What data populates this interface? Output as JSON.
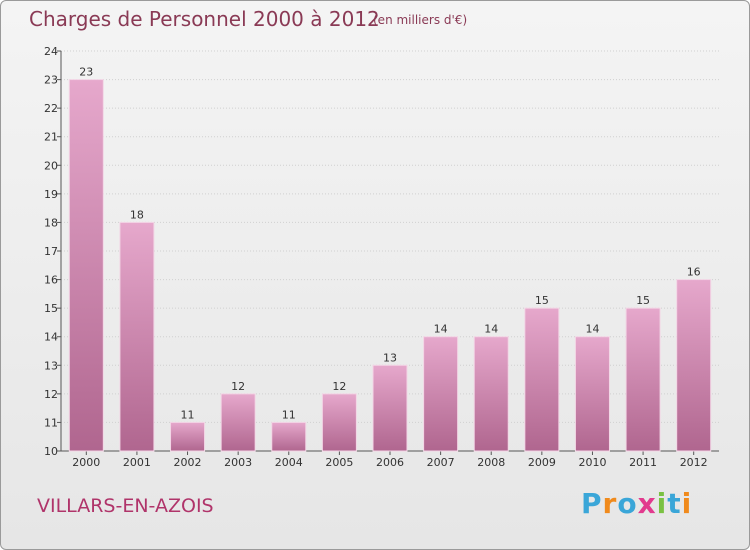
{
  "header": {
    "title": "Charges de Personnel 2000 à 2012",
    "unit": "(en milliers d'€)"
  },
  "footer": {
    "place": "VILLARS-EN-AZOIS",
    "brand": [
      "P",
      "r",
      "o",
      "x",
      "i",
      "t",
      "i"
    ],
    "brand_colors": [
      "#3aa6d8",
      "#f08a1c",
      "#3aa6d8",
      "#e23a8e",
      "#7ac142",
      "#3aa6d8",
      "#f08a1c"
    ]
  },
  "chart_data": {
    "type": "bar",
    "title": "Charges de Personnel 2000 à 2012",
    "subtitle": "(en milliers d'€)",
    "xlabel": "",
    "ylabel": "",
    "categories": [
      "2000",
      "2001",
      "2002",
      "2003",
      "2004",
      "2005",
      "2006",
      "2007",
      "2008",
      "2009",
      "2010",
      "2011",
      "2012"
    ],
    "values": [
      23,
      18,
      11,
      12,
      11,
      12,
      13,
      14,
      14,
      15,
      14,
      15,
      16
    ],
    "ylim": [
      10,
      24
    ],
    "yticks": [
      10,
      11,
      12,
      13,
      14,
      15,
      16,
      17,
      18,
      19,
      20,
      21,
      22,
      23,
      24
    ],
    "grid": true,
    "bar_color_top": "#e6a8cc",
    "bar_color_bottom": "#b0668f"
  }
}
